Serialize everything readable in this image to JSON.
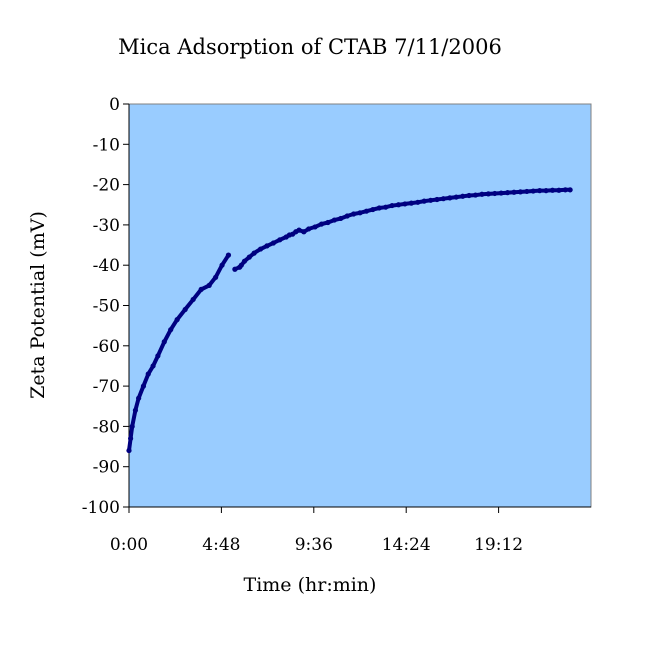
{
  "chart_data": {
    "type": "scatter",
    "title": "Mica Adsorption of CTAB 7/11/2006",
    "xlabel": "Time (hr:min)",
    "ylabel": "Zeta Potential (mV)",
    "plot_background": "#99ccff",
    "series_color": "#000080",
    "x_unit": "minutes",
    "xlim": [
      0,
      1440
    ],
    "ylim": [
      -100,
      0
    ],
    "x_ticks": [
      0,
      288,
      576,
      864,
      1152
    ],
    "x_tick_labels": [
      "0:00",
      "4:48",
      "9:36",
      "14:24",
      "19:12"
    ],
    "y_ticks": [
      0,
      -10,
      -20,
      -30,
      -40,
      -50,
      -60,
      -70,
      -80,
      -90,
      -100
    ],
    "y_tick_labels": [
      "0",
      "-10",
      "-20",
      "-30",
      "-40",
      "-50",
      "-60",
      "-70",
      "-80",
      "-90",
      "-100"
    ],
    "grid": false,
    "legend": false,
    "series": [
      {
        "x": [
          0,
          5,
          10,
          20,
          30,
          45,
          60,
          75,
          90,
          110,
          130,
          150,
          175,
          200,
          225,
          250,
          270,
          290,
          310,
          330,
          345,
          350,
          360,
          375,
          390,
          410,
          430,
          450,
          470,
          490,
          500,
          510,
          520,
          530,
          545,
          560,
          580,
          600,
          620,
          640,
          660,
          680,
          700,
          720,
          740,
          760,
          780,
          800,
          820,
          840,
          860,
          880,
          900,
          920,
          940,
          960,
          980,
          1000,
          1020,
          1040,
          1060,
          1080,
          1100,
          1120,
          1140,
          1160,
          1180,
          1200,
          1220,
          1240,
          1260,
          1280,
          1300,
          1320,
          1340,
          1360,
          1375
        ],
        "y": [
          -86,
          -83,
          -80,
          -76,
          -73,
          -70,
          -67,
          -65,
          -62.5,
          -59,
          -56,
          -53.5,
          -51,
          -48.5,
          -46,
          -45,
          -43,
          -40,
          -37.5,
          -41,
          -40.5,
          -40,
          -39,
          -38,
          -37,
          -36,
          -35.2,
          -34.5,
          -33.7,
          -33,
          -32.5,
          -32.3,
          -31.7,
          -31.3,
          -31.7,
          -31,
          -30.5,
          -29.8,
          -29.4,
          -28.8,
          -28.4,
          -27.8,
          -27.3,
          -27,
          -26.6,
          -26.2,
          -25.8,
          -25.6,
          -25.2,
          -25,
          -24.8,
          -24.6,
          -24.4,
          -24.1,
          -23.9,
          -23.7,
          -23.5,
          -23.3,
          -23.1,
          -22.9,
          -22.7,
          -22.6,
          -22.4,
          -22.3,
          -22.2,
          -22.1,
          -22,
          -21.9,
          -21.8,
          -21.7,
          -21.6,
          -21.5,
          -21.5,
          -21.4,
          -21.4,
          -21.3,
          -21.3
        ]
      }
    ]
  }
}
